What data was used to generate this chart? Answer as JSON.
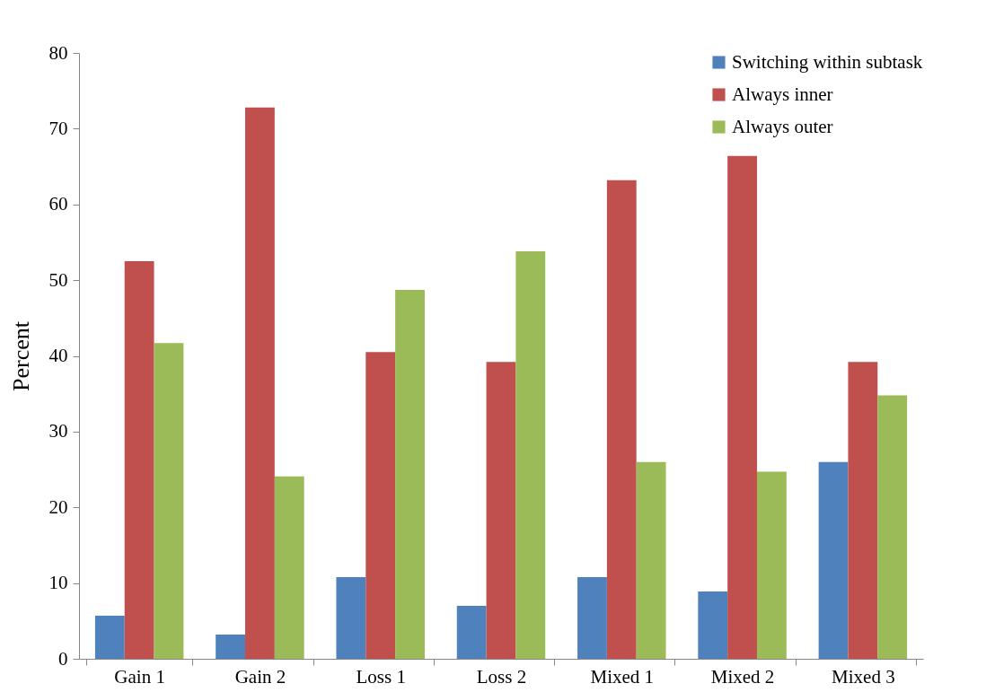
{
  "chart_data": {
    "type": "bar",
    "ylabel": "Percent",
    "categories": [
      "Gain 1",
      "Gain 2",
      "Loss 1",
      "Loss 2",
      "Mixed 1",
      "Mixed 2",
      "Mixed 3"
    ],
    "series": [
      {
        "name": "Switching within subtask",
        "color": "#4f81bd",
        "values": [
          5.7,
          3.2,
          10.8,
          7.0,
          10.8,
          8.9,
          26.0
        ]
      },
      {
        "name": "Always inner",
        "color": "#c0504d",
        "values": [
          52.5,
          72.8,
          40.5,
          39.2,
          63.2,
          66.4,
          39.2
        ]
      },
      {
        "name": "Always outer",
        "color": "#9bbb59",
        "values": [
          41.7,
          24.1,
          48.7,
          53.8,
          26.0,
          24.7,
          34.8
        ]
      }
    ],
    "ylim": [
      0,
      80
    ],
    "yticks": [
      0,
      10,
      20,
      30,
      40,
      50,
      60,
      70,
      80
    ],
    "grid": false,
    "legend": "top right"
  }
}
